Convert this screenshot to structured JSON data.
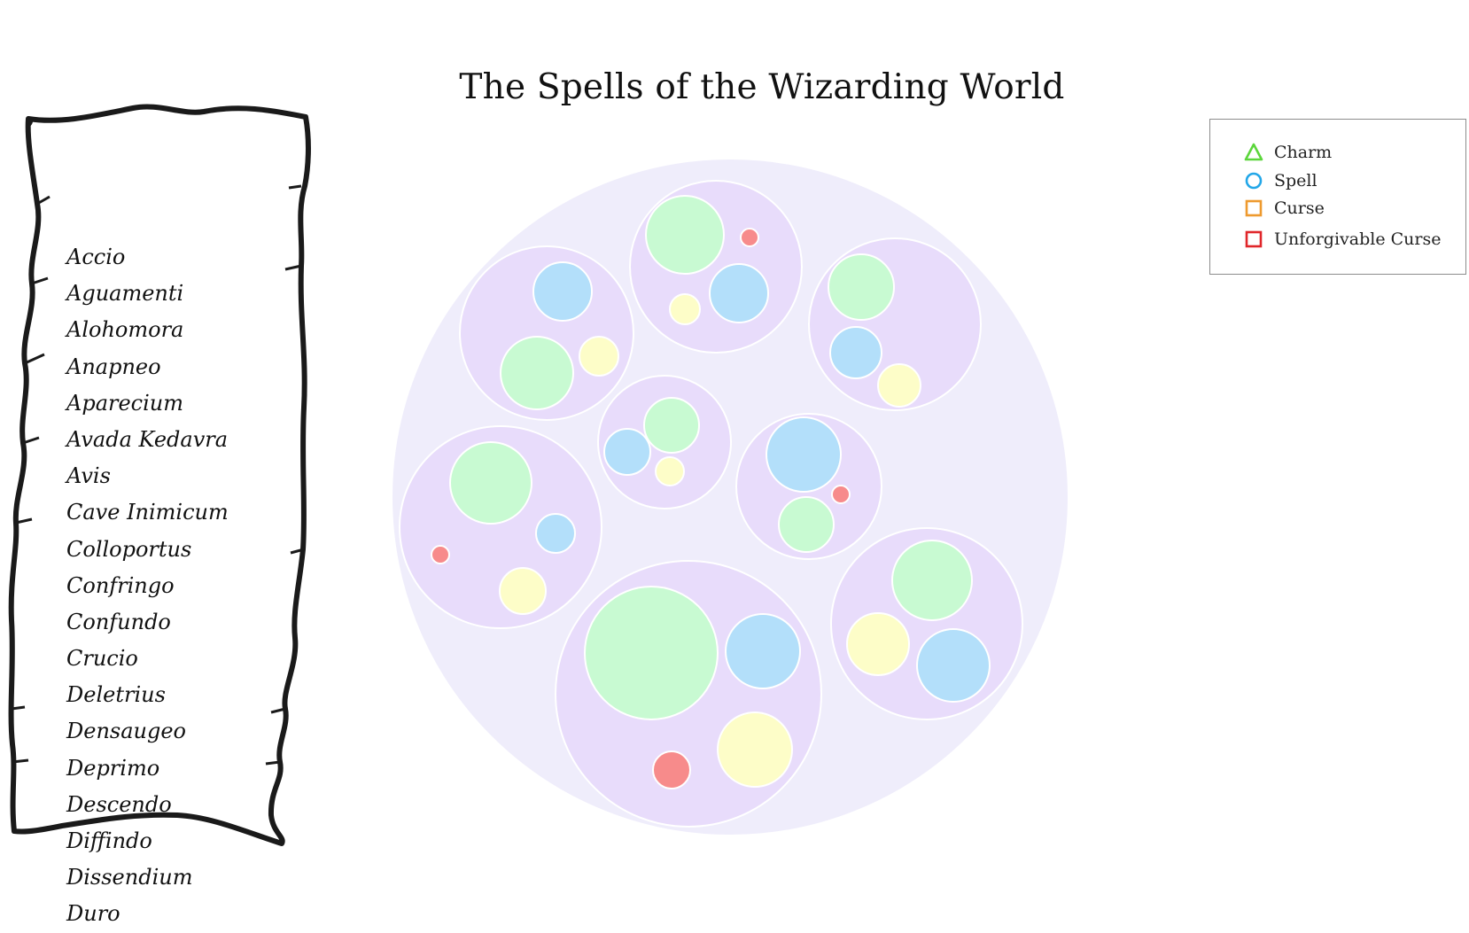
{
  "chart_data": {
    "type": "bubble",
    "title": "The Spells of the Wizarding World",
    "legend": {
      "placement": "top-right",
      "items": [
        {
          "label": "Charm",
          "shape": "triangle",
          "color": "#5cd63c"
        },
        {
          "label": "Spell",
          "shape": "circle",
          "color": "#23a7e8"
        },
        {
          "label": "Curse",
          "shape": "square",
          "color": "#ee9a2e"
        },
        {
          "label": "Unforgivable Curse",
          "shape": "square",
          "color": "#e0262a"
        }
      ]
    },
    "colors": {
      "outer": "#efedfb",
      "group": "#e8dcfb",
      "charm": "#c8fad2",
      "spell": "#b3dffa",
      "curse": "#fdfdc8",
      "unforgivable": "#f78b8b"
    },
    "spell_list": [
      "Accio",
      "Aguamenti",
      "Alohomora",
      "Anapneo",
      "Aparecium",
      "Avada Kedavra",
      "Avis",
      "Cave Inimicum",
      "Colloportus",
      "Confringo",
      "Confundo",
      "Crucio",
      "Deletrius",
      "Densaugeo",
      "Deprimo",
      "Descendo",
      "Diffindo",
      "Dissendium",
      "Duro"
    ]
  }
}
